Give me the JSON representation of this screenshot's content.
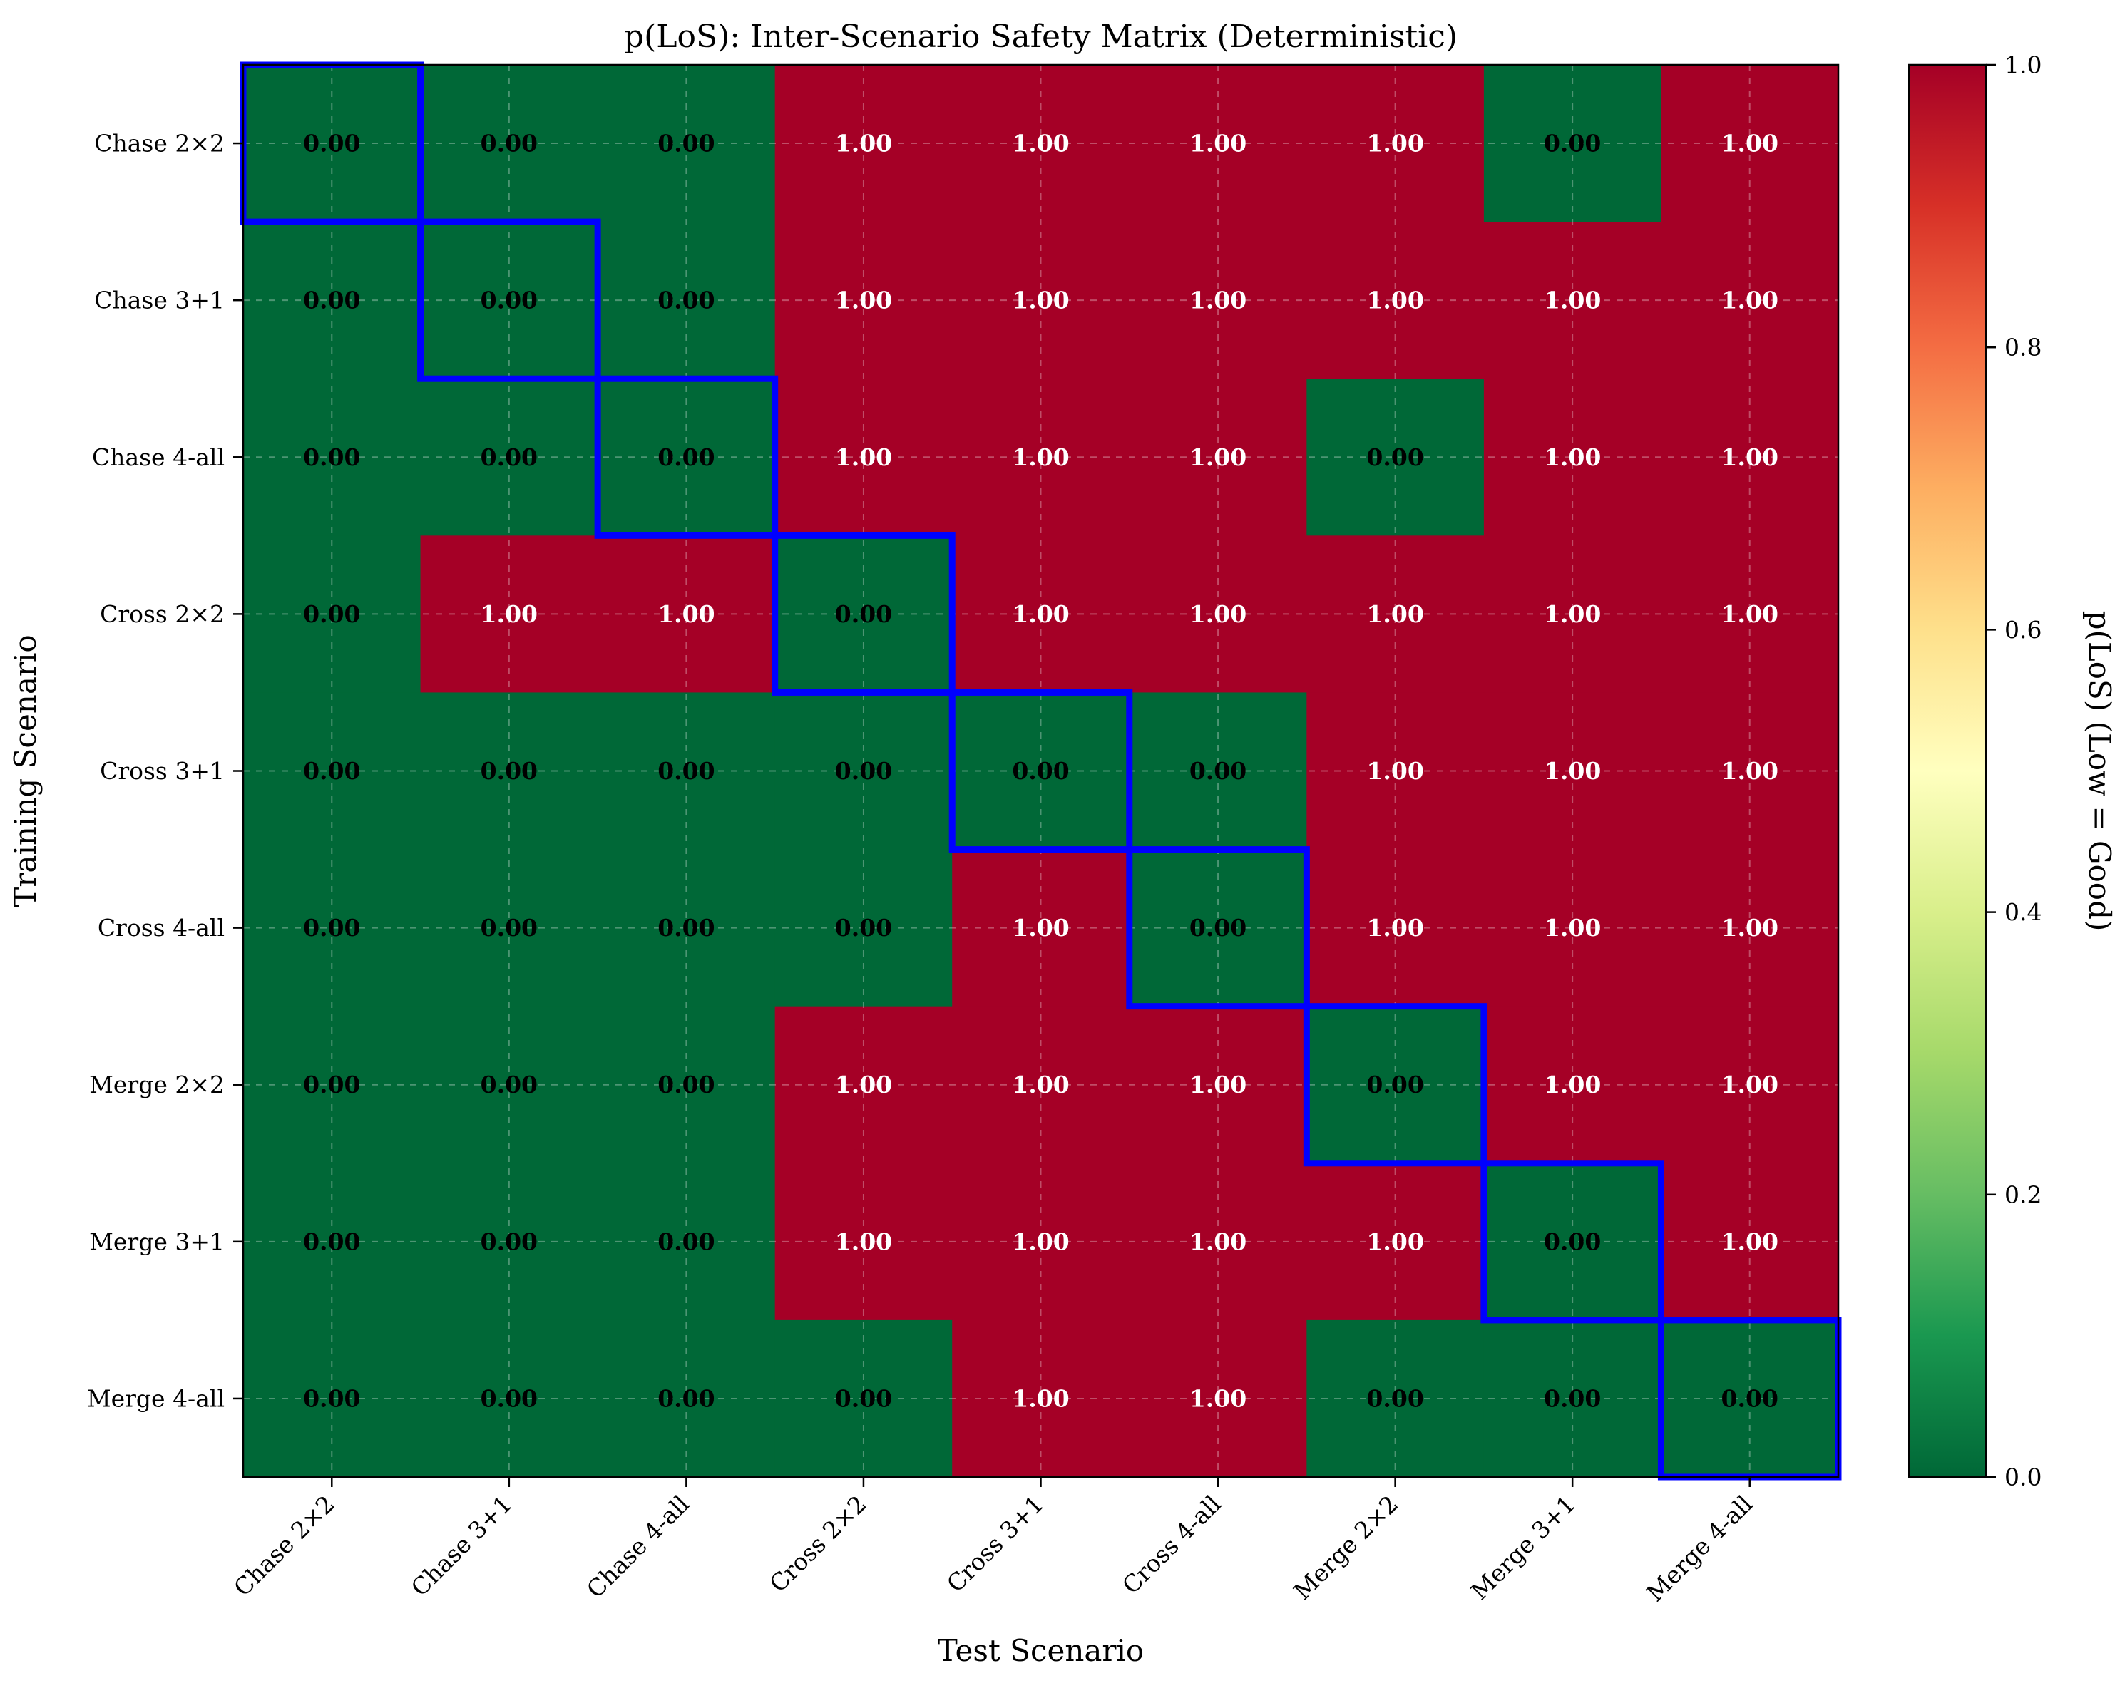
{
  "chart_data": {
    "type": "heatmap",
    "title": "p(LoS): Inter-Scenario Safety Matrix (Deterministic)",
    "xlabel": "Test Scenario",
    "ylabel": "Training Scenario",
    "colorbar_label": "p(LoS) (Low = Good)",
    "colormap": "RdYlGn_r",
    "vmin": 0.0,
    "vmax": 1.0,
    "colorbar_ticks": [
      "0.0",
      "0.2",
      "0.4",
      "0.6",
      "0.8",
      "1.0"
    ],
    "x_categories": [
      "Chase 2×2",
      "Chase 3+1",
      "Chase 4-all",
      "Cross 2×2",
      "Cross 3+1",
      "Cross 4-all",
      "Merge 2×2",
      "Merge 3+1",
      "Merge 4-all"
    ],
    "y_categories": [
      "Chase 2×2",
      "Chase 3+1",
      "Chase 4-all",
      "Cross 2×2",
      "Cross 3+1",
      "Cross 4-all",
      "Merge 2×2",
      "Merge 3+1",
      "Merge 4-all"
    ],
    "values": [
      [
        0,
        0,
        0,
        1,
        1,
        1,
        1,
        0,
        1
      ],
      [
        0,
        0,
        0,
        1,
        1,
        1,
        1,
        1,
        1
      ],
      [
        0,
        0,
        0,
        1,
        1,
        1,
        0,
        1,
        1
      ],
      [
        0,
        1,
        1,
        0,
        1,
        1,
        1,
        1,
        1
      ],
      [
        0,
        0,
        0,
        0,
        0,
        0,
        1,
        1,
        1
      ],
      [
        0,
        0,
        0,
        0,
        1,
        0,
        1,
        1,
        1
      ],
      [
        0,
        0,
        0,
        1,
        1,
        1,
        0,
        1,
        1
      ],
      [
        0,
        0,
        0,
        1,
        1,
        1,
        1,
        0,
        1
      ],
      [
        0,
        0,
        0,
        0,
        1,
        1,
        0,
        0,
        0
      ]
    ],
    "value_format": "0.00",
    "highlight_diagonal": true,
    "grid": true,
    "colors": {
      "low": "#006837",
      "high": "#a50026",
      "highlight": "#0000ff",
      "text_on_low": "#000000",
      "text_on_high": "#ffffff"
    }
  }
}
